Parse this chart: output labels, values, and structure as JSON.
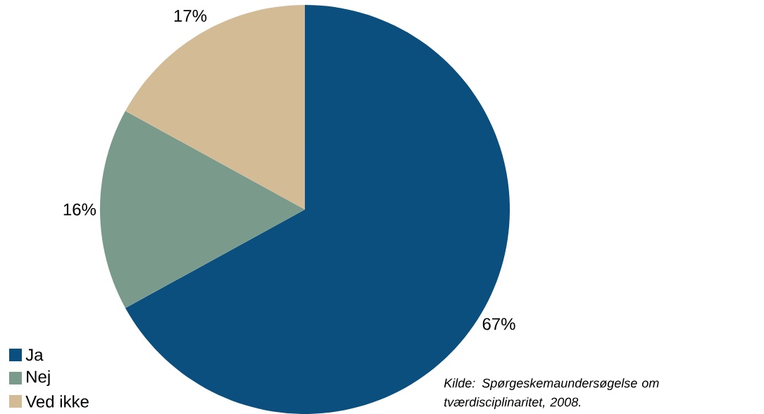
{
  "chart_data": {
    "type": "pie",
    "categories": [
      "Ja",
      "Nej",
      "Ved ikke"
    ],
    "values": [
      67,
      16,
      17
    ],
    "colors": [
      "#0a4f7d",
      "#7a9b8c",
      "#d3bb96"
    ],
    "value_labels": [
      "67%",
      "16%",
      "17%"
    ],
    "legend": "bottom left",
    "annotations": [
      "*Kilde: Spørgeskemaundersøgelse om tværdisciplinaritet, 2008.*"
    ]
  }
}
